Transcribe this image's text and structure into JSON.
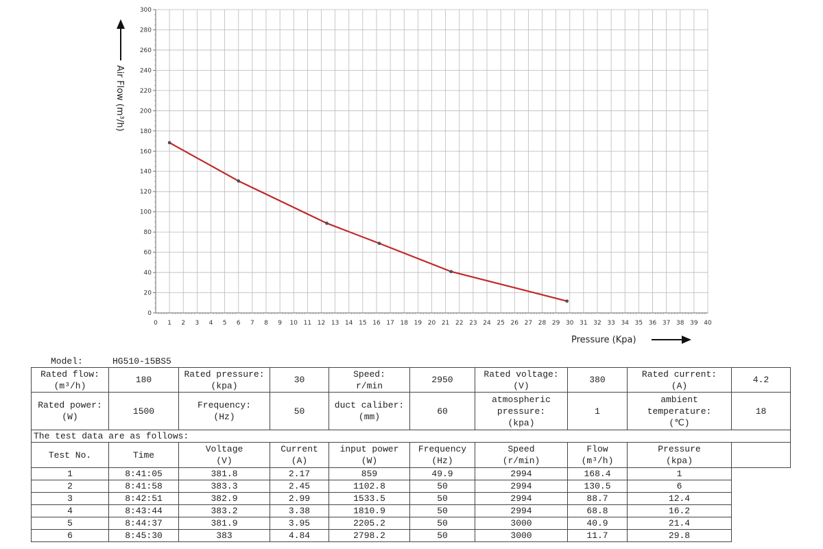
{
  "chart_data": {
    "type": "line",
    "xlabel": "Pressure  (Kpa)",
    "ylabel": "Air Flow  (m³/h)",
    "xlim": [
      0,
      40
    ],
    "ylim": [
      0,
      300
    ],
    "xticks": [
      0,
      1,
      2,
      3,
      4,
      5,
      6,
      7,
      8,
      9,
      10,
      11,
      12,
      13,
      14,
      15,
      16,
      17,
      18,
      19,
      20,
      21,
      22,
      23,
      24,
      25,
      26,
      27,
      28,
      29,
      30,
      31,
      32,
      33,
      34,
      35,
      36,
      37,
      38,
      39,
      40
    ],
    "yticks": [
      0,
      20,
      40,
      60,
      80,
      100,
      120,
      140,
      160,
      180,
      200,
      220,
      240,
      260,
      280,
      300
    ],
    "grid": true,
    "line_color": "#c0292b",
    "points": [
      {
        "x": 1,
        "y": 168.4
      },
      {
        "x": 6,
        "y": 130.5
      },
      {
        "x": 12.4,
        "y": 88.7
      },
      {
        "x": 16.2,
        "y": 68.8
      },
      {
        "x": 21.4,
        "y": 40.9
      },
      {
        "x": 29.8,
        "y": 11.7
      }
    ]
  },
  "model": {
    "label": "Model:",
    "value": "HG510-15BS5"
  },
  "specs": {
    "rated_flow_label": "Rated flow:",
    "rated_flow_unit": "(m³/h)",
    "rated_flow": "180",
    "rated_pressure_label": "Rated pressure:",
    "rated_pressure_unit": "(kpa)",
    "rated_pressure": "30",
    "speed_label": "Speed:",
    "speed_unit": "r/min",
    "speed": "2950",
    "rated_voltage_label": "Rated voltage:",
    "rated_voltage_unit": "(V)",
    "rated_voltage": "380",
    "rated_current_label": "Rated current:",
    "rated_current_unit": "(A)",
    "rated_current": "4.2",
    "rated_power_label": "Rated power:",
    "rated_power_unit": "(W)",
    "rated_power": "1500",
    "frequency_label": "Frequency:",
    "frequency_unit": "(Hz)",
    "frequency": "50",
    "duct_label": "duct caliber:",
    "duct_unit": "(mm)",
    "duct": "60",
    "atm_label_1": "atmospheric",
    "atm_label_2": "pressure:",
    "atm_unit": "(kpa)",
    "atm": "1",
    "amb_label_1": "ambient",
    "amb_label_2": "temperature:",
    "amb_unit": "(℃)",
    "amb": "18"
  },
  "test_note": "The test data are as follows:",
  "test_headers": [
    {
      "name": "Test No.",
      "unit": ""
    },
    {
      "name": "Time",
      "unit": ""
    },
    {
      "name": "Voltage",
      "unit": "(V)"
    },
    {
      "name": "Current",
      "unit": "(A)"
    },
    {
      "name": "input power",
      "unit": "(W)"
    },
    {
      "name": "Frequency",
      "unit": "(Hz)"
    },
    {
      "name": "Speed",
      "unit": "(r/min)"
    },
    {
      "name": "Flow",
      "unit": "(m³/h)"
    },
    {
      "name": "Pressure",
      "unit": "(kpa)"
    }
  ],
  "test_rows": [
    [
      "1",
      "8:41:05",
      "381.8",
      "2.17",
      "859",
      "49.9",
      "2994",
      "168.4",
      "1"
    ],
    [
      "2",
      "8:41:58",
      "383.3",
      "2.45",
      "1102.8",
      "50",
      "2994",
      "130.5",
      "6"
    ],
    [
      "3",
      "8:42:51",
      "382.9",
      "2.99",
      "1533.5",
      "50",
      "2994",
      "88.7",
      "12.4"
    ],
    [
      "4",
      "8:43:44",
      "383.2",
      "3.38",
      "1810.9",
      "50",
      "2994",
      "68.8",
      "16.2"
    ],
    [
      "5",
      "8:44:37",
      "381.9",
      "3.95",
      "2205.2",
      "50",
      "3000",
      "40.9",
      "21.4"
    ],
    [
      "6",
      "8:45:30",
      "383",
      "4.84",
      "2798.2",
      "50",
      "3000",
      "11.7",
      "29.8"
    ]
  ]
}
